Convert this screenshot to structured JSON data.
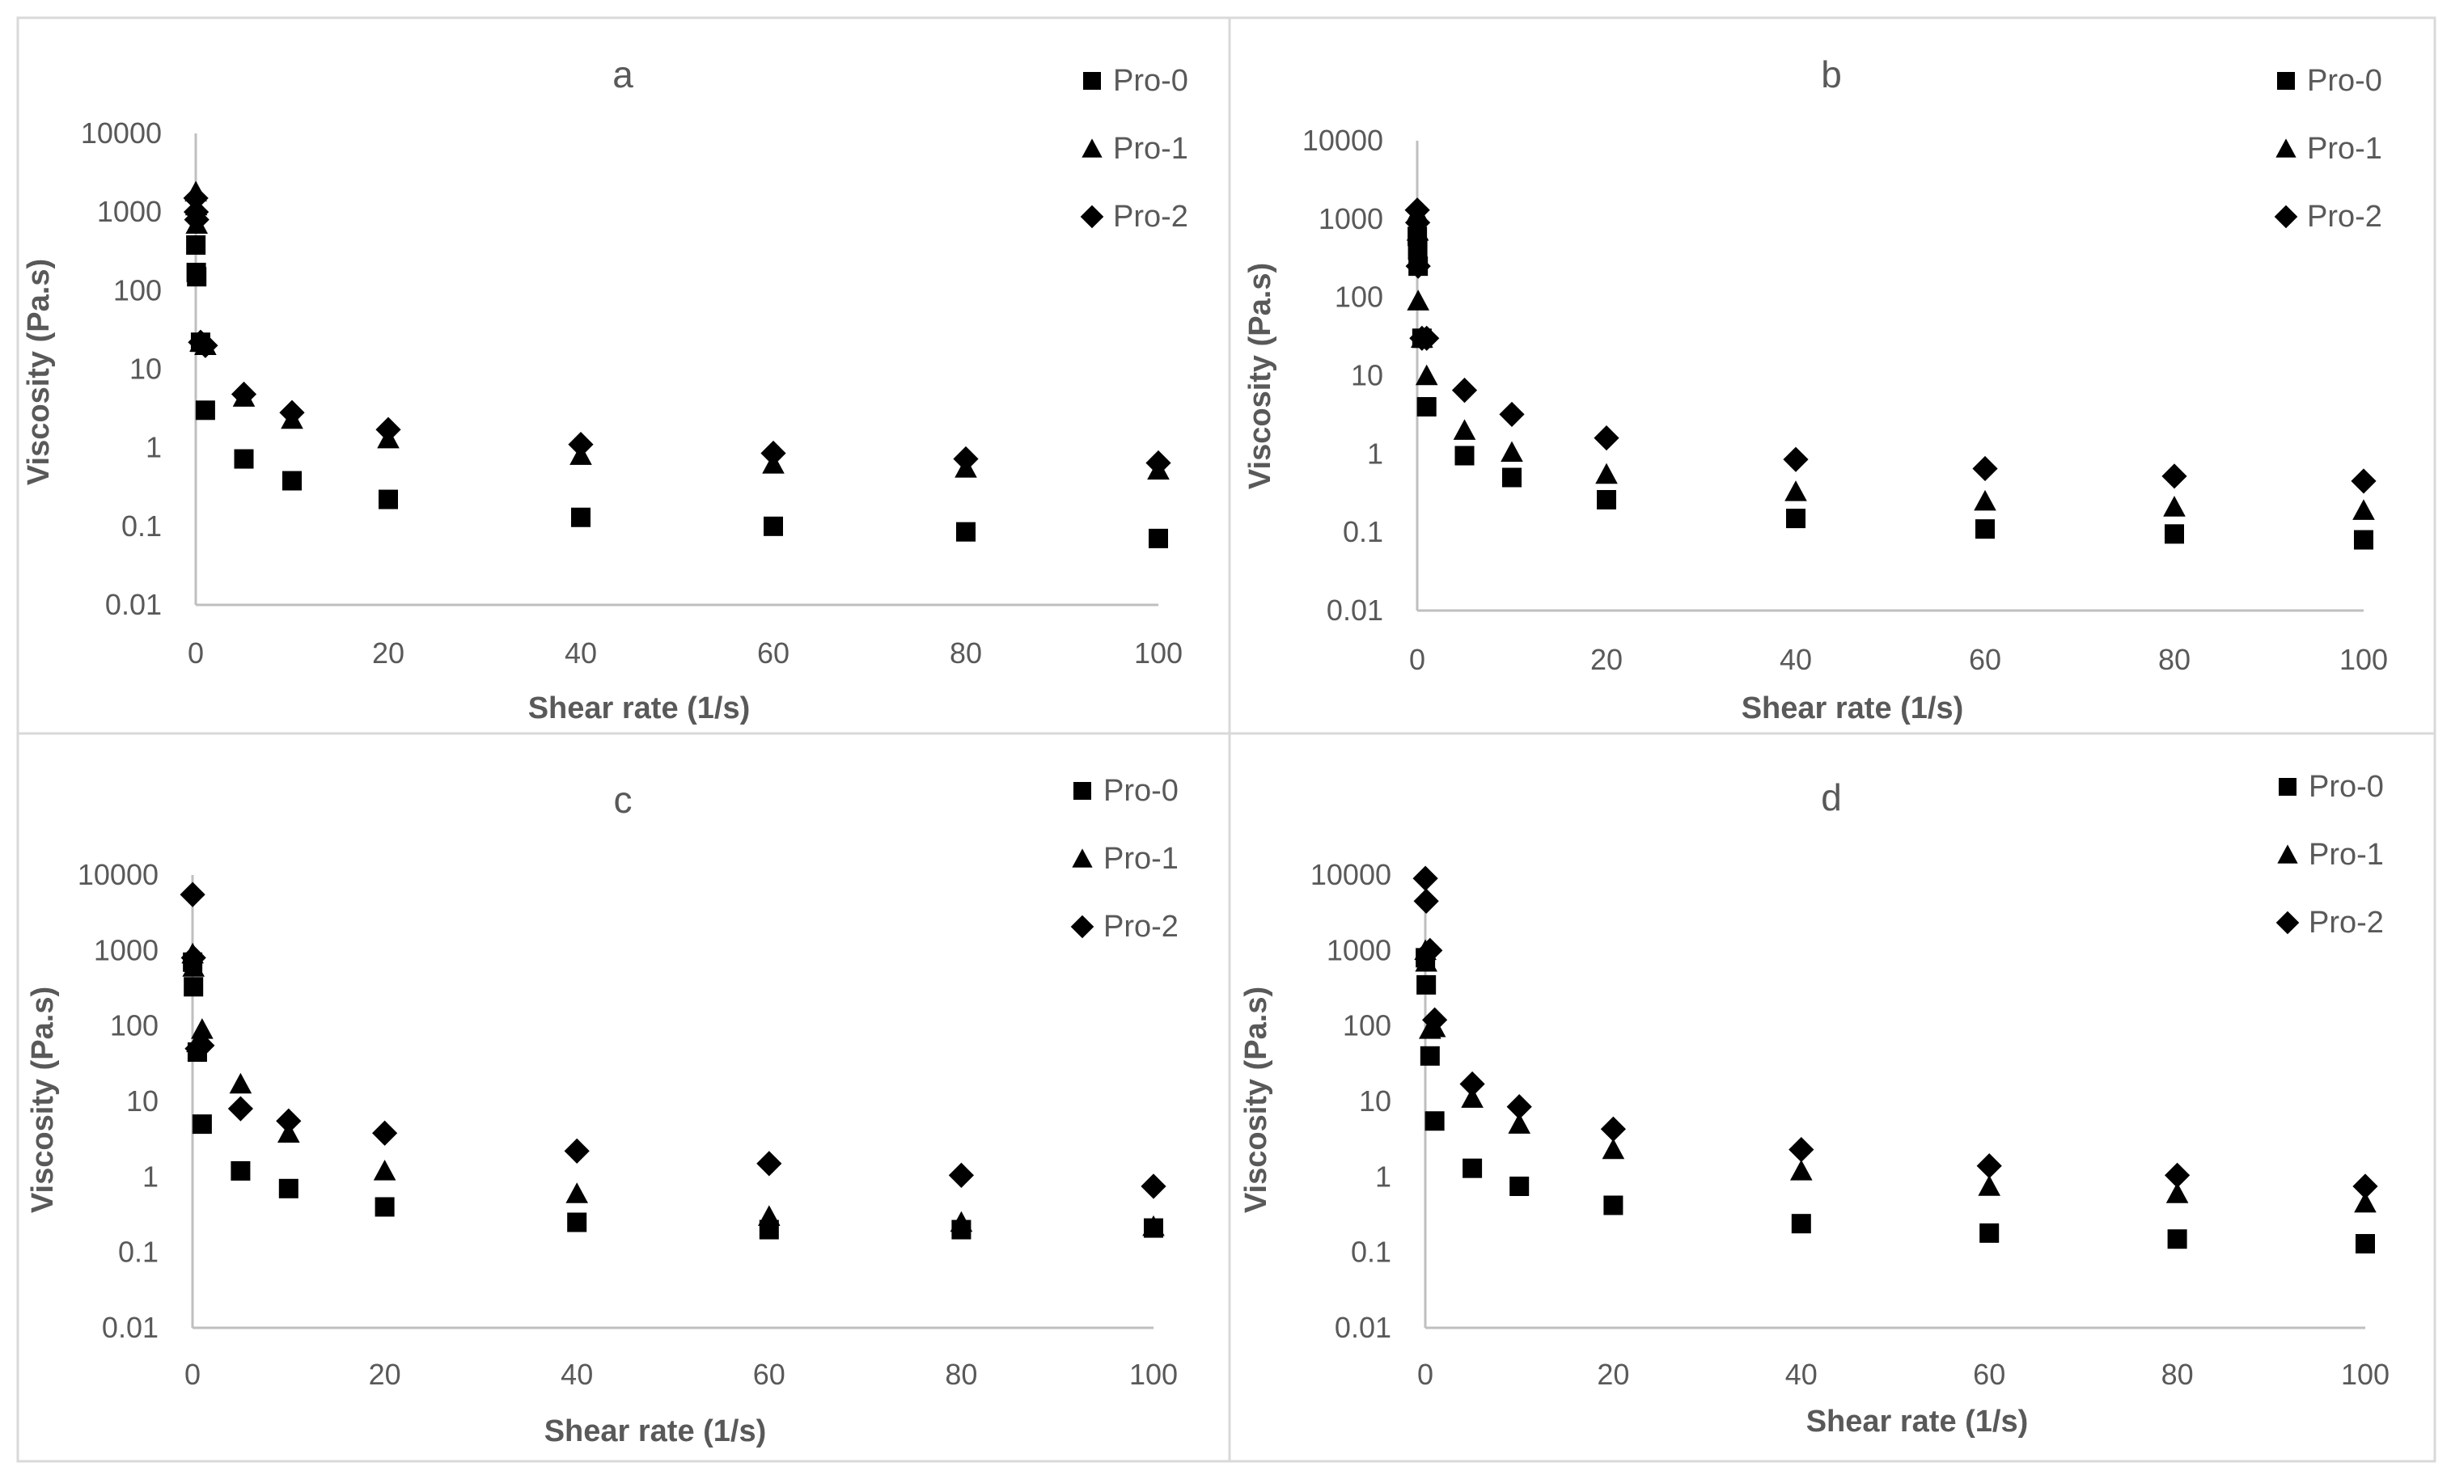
{
  "chart_data": [
    {
      "type": "scatter",
      "title": "a",
      "xlabel": "Shear rate (1/s)",
      "ylabel": "Viscosity (Pa.s)",
      "y_scale": "log",
      "ylim": [
        0.01,
        10000
      ],
      "xlim": [
        0,
        100
      ],
      "x_ticks": [
        "0",
        "20",
        "40",
        "60",
        "80",
        "100"
      ],
      "y_ticks": [
        "0.01",
        "0.1",
        "1",
        "10",
        "100",
        "1000",
        "10000"
      ],
      "legend_position": "top-right",
      "grid": false,
      "series": [
        {
          "name": "Pro-0",
          "marker": "square",
          "x": [
            0.01,
            0.05,
            0.1,
            0.5,
            1,
            5,
            10,
            20,
            40,
            60,
            80,
            100
          ],
          "y": [
            380,
            170,
            150,
            22,
            3.0,
            0.72,
            0.38,
            0.22,
            0.13,
            0.1,
            0.085,
            0.07
          ]
        },
        {
          "name": "Pro-1",
          "marker": "triangle",
          "x": [
            0.01,
            0.05,
            0.1,
            0.5,
            1,
            5,
            10,
            20,
            40,
            60,
            80,
            100
          ],
          "y": [
            1800,
            1200,
            700,
            22,
            20,
            4.4,
            2.3,
            1.3,
            0.8,
            0.62,
            0.55,
            0.52
          ]
        },
        {
          "name": "Pro-2",
          "marker": "diamond",
          "x": [
            0.01,
            0.05,
            0.1,
            0.5,
            1,
            5,
            10,
            20,
            40,
            60,
            80,
            100
          ],
          "y": [
            1500,
            1000,
            800,
            22,
            20,
            4.8,
            2.8,
            1.7,
            1.1,
            0.85,
            0.72,
            0.64
          ]
        }
      ]
    },
    {
      "type": "scatter",
      "title": "b",
      "xlabel": "Shear rate (1/s)",
      "ylabel": "Viscosity (Pa.s)",
      "y_scale": "log",
      "ylim": [
        0.01,
        10000
      ],
      "xlim": [
        0,
        100
      ],
      "x_ticks": [
        "0",
        "20",
        "40",
        "60",
        "80",
        "100"
      ],
      "y_ticks": [
        "0.01",
        "0.1",
        "1",
        "10",
        "100",
        "1000",
        "10000"
      ],
      "legend_position": "top-right",
      "grid": false,
      "series": [
        {
          "name": "Pro-0",
          "marker": "square",
          "x": [
            0.01,
            0.05,
            0.1,
            0.5,
            1,
            5,
            10,
            20,
            40,
            60,
            80,
            100
          ],
          "y": [
            600,
            400,
            250,
            30,
            4.0,
            0.95,
            0.5,
            0.26,
            0.15,
            0.11,
            0.095,
            0.08
          ]
        },
        {
          "name": "Pro-1",
          "marker": "triangle",
          "x": [
            0.01,
            0.05,
            0.1,
            0.5,
            1,
            5,
            10,
            20,
            40,
            60,
            80,
            100
          ],
          "y": [
            1200,
            700,
            90,
            30,
            10,
            2.0,
            1.05,
            0.55,
            0.33,
            0.25,
            0.21,
            0.19
          ]
        },
        {
          "name": "Pro-2",
          "marker": "diamond",
          "x": [
            0.01,
            0.05,
            0.1,
            0.5,
            1,
            5,
            10,
            20,
            40,
            60,
            80,
            100
          ],
          "y": [
            1300,
            900,
            250,
            30,
            30,
            6.5,
            3.2,
            1.6,
            0.85,
            0.65,
            0.52,
            0.45
          ]
        }
      ]
    },
    {
      "type": "scatter",
      "title": "c",
      "xlabel": "Shear rate (1/s)",
      "ylabel": "Viscosity (Pa.s)",
      "y_scale": "log",
      "ylim": [
        0.01,
        10000
      ],
      "xlim": [
        0,
        100
      ],
      "x_ticks": [
        "0",
        "20",
        "40",
        "60",
        "80",
        "100"
      ],
      "y_ticks": [
        "0.01",
        "0.1",
        "1",
        "10",
        "100",
        "1000",
        "10000"
      ],
      "legend_position": "top-right",
      "grid": false,
      "series": [
        {
          "name": "Pro-0",
          "marker": "square",
          "x": [
            0.01,
            0.1,
            0.5,
            1,
            5,
            10,
            20,
            40,
            60,
            80,
            100
          ],
          "y": [
            700,
            330,
            45,
            5.0,
            1.2,
            0.7,
            0.4,
            0.25,
            0.2,
            0.2,
            0.21
          ]
        },
        {
          "name": "Pro-1",
          "marker": "triangle",
          "x": [
            0.01,
            0.1,
            0.5,
            1,
            5,
            10,
            20,
            40,
            60,
            80,
            100
          ],
          "y": [
            900,
            600,
            60,
            90,
            17,
            3.8,
            1.2,
            0.6,
            0.3,
            0.25,
            0.22
          ]
        },
        {
          "name": "Pro-2",
          "marker": "diamond",
          "x": [
            0.01,
            0.1,
            0.5,
            1,
            5,
            10,
            20,
            40,
            60,
            80,
            100
          ],
          "y": [
            5500,
            800,
            50,
            55,
            8.0,
            5.5,
            3.8,
            2.2,
            1.5,
            1.05,
            0.75
          ]
        }
      ]
    },
    {
      "type": "scatter",
      "title": "d",
      "xlabel": "Shear rate (1/s)",
      "ylabel": "Viscosity (Pa.s)",
      "y_scale": "log",
      "ylim": [
        0.01,
        10000
      ],
      "xlim": [
        0,
        100
      ],
      "x_ticks": [
        "0",
        "20",
        "40",
        "60",
        "80",
        "100"
      ],
      "y_ticks": [
        "0.01",
        "0.1",
        "1",
        "10",
        "100",
        "1000",
        "10000"
      ],
      "legend_position": "top-right",
      "grid": false,
      "series": [
        {
          "name": "Pro-0",
          "marker": "square",
          "x": [
            0.01,
            0.1,
            0.5,
            1,
            5,
            10,
            20,
            40,
            60,
            80,
            100
          ],
          "y": [
            800,
            350,
            40,
            5.5,
            1.3,
            0.75,
            0.42,
            0.24,
            0.18,
            0.15,
            0.13
          ]
        },
        {
          "name": "Pro-1",
          "marker": "triangle",
          "x": [
            0.01,
            0.1,
            0.5,
            1,
            5,
            10,
            20,
            40,
            60,
            80,
            100
          ],
          "y": [
            1000,
            700,
            90,
            95,
            11,
            5.0,
            2.3,
            1.2,
            0.75,
            0.6,
            0.45
          ]
        },
        {
          "name": "Pro-2",
          "marker": "diamond",
          "x": [
            0.01,
            0.1,
            0.5,
            1,
            5,
            10,
            20,
            40,
            60,
            80,
            100
          ],
          "y": [
            9000,
            4500,
            1000,
            120,
            17,
            8.5,
            4.3,
            2.3,
            1.4,
            1.05,
            0.75
          ]
        }
      ]
    }
  ]
}
